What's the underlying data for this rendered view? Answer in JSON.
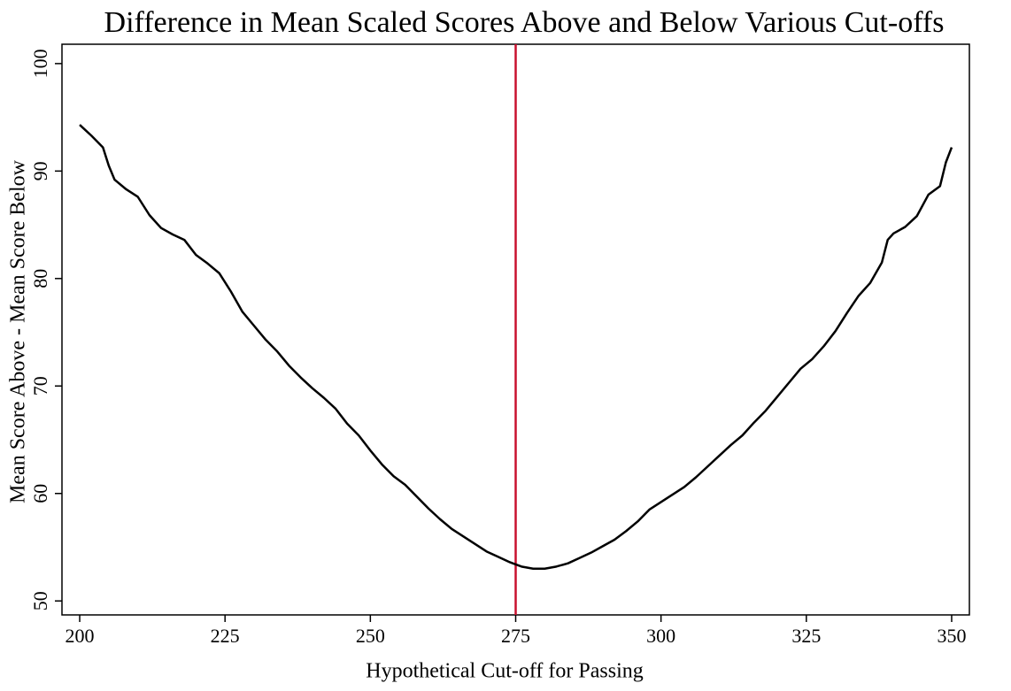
{
  "chart_data": {
    "type": "line",
    "title": "Difference in Mean Scaled Scores Above and Below Various Cut-offs",
    "x_label": "Hypothetical Cut-off for Passing",
    "y_label": "Mean Score Above - Mean Score Below",
    "x": [
      200,
      201,
      202,
      204,
      205,
      206,
      208,
      210,
      212,
      214,
      216,
      218,
      220,
      222,
      224,
      226,
      228,
      230,
      232,
      234,
      236,
      238,
      240,
      242,
      244,
      246,
      248,
      250,
      252,
      254,
      256,
      258,
      260,
      262,
      264,
      266,
      268,
      270,
      272,
      274,
      276,
      278,
      280,
      282,
      284,
      286,
      288,
      290,
      292,
      294,
      296,
      298,
      300,
      302,
      304,
      306,
      308,
      310,
      312,
      314,
      316,
      318,
      320,
      322,
      324,
      326,
      328,
      330,
      332,
      334,
      336,
      338,
      339,
      340,
      342,
      344,
      346,
      348,
      349,
      350
    ],
    "series": [
      {
        "name": "Difference",
        "color": "#000000",
        "values": [
          94.3,
          93.8,
          93.3,
          92.2,
          90.5,
          89.2,
          88.3,
          87.6,
          85.9,
          84.7,
          84.1,
          83.6,
          82.2,
          81.4,
          80.5,
          78.8,
          76.9,
          75.6,
          74.3,
          73.2,
          71.9,
          70.8,
          69.8,
          68.9,
          67.9,
          66.5,
          65.4,
          64.0,
          62.7,
          61.6,
          60.8,
          59.7,
          58.6,
          57.6,
          56.7,
          56.0,
          55.3,
          54.6,
          54.1,
          53.6,
          53.2,
          53.0,
          53.0,
          53.2,
          53.5,
          54.0,
          54.5,
          55.1,
          55.7,
          56.5,
          57.4,
          58.5,
          59.2,
          59.9,
          60.6,
          61.5,
          62.5,
          63.5,
          64.5,
          65.4,
          66.6,
          67.7,
          69.0,
          70.3,
          71.6,
          72.5,
          73.7,
          75.1,
          76.8,
          78.4,
          79.6,
          81.5,
          83.6,
          84.2,
          84.8,
          85.8,
          87.8,
          88.6,
          90.8,
          92.2
        ]
      }
    ],
    "vline": {
      "x": 275,
      "color": "#c8102e"
    },
    "xlim": [
      196.95,
      353.05
    ],
    "xticks": [
      200,
      225,
      250,
      275,
      300,
      325,
      350
    ],
    "ylim": [
      48.7,
      101.8
    ],
    "yticks": [
      50,
      60,
      70,
      80,
      90,
      100
    ],
    "grid": false
  }
}
